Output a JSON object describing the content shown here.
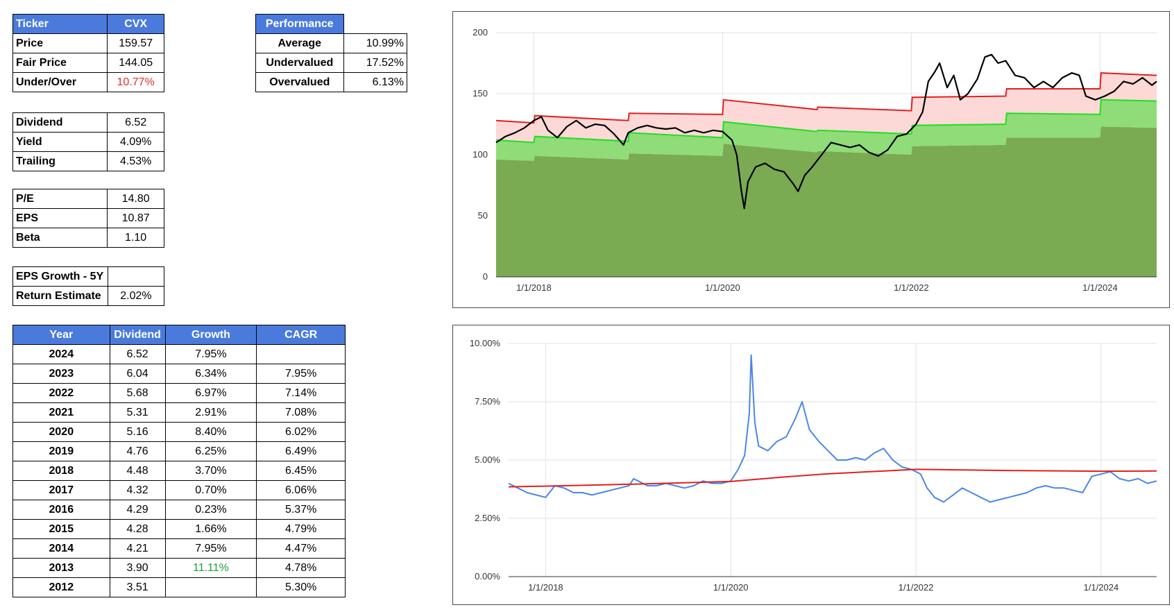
{
  "ticker_table": {
    "header_label": "Ticker",
    "header_value": "CVX",
    "rows": [
      {
        "label": "Price",
        "value": "159.57"
      },
      {
        "label": "Fair Price",
        "value": "144.05"
      },
      {
        "label": "Under/Over",
        "value": "10.77%",
        "color": "#e0302a"
      }
    ]
  },
  "performance_table": {
    "header": "Performance",
    "rows": [
      {
        "label": "Average",
        "value": "10.99%"
      },
      {
        "label": "Undervalued",
        "value": "17.52%"
      },
      {
        "label": "Overvalued",
        "value": "6.13%"
      }
    ]
  },
  "dividend_table": {
    "rows": [
      {
        "label": "Dividend",
        "value": "6.52"
      },
      {
        "label": "Yield",
        "value": "4.09%"
      },
      {
        "label": "Trailing",
        "value": "4.53%"
      }
    ]
  },
  "valuation_table": {
    "rows": [
      {
        "label": "P/E",
        "value": "14.80"
      },
      {
        "label": "EPS",
        "value": "10.87"
      },
      {
        "label": "Beta",
        "value": "1.10"
      }
    ]
  },
  "growth_table": {
    "rows": [
      {
        "label": "EPS Growth - 5Y",
        "value": ""
      },
      {
        "label": "Return Estimate",
        "value": "2.02%"
      }
    ]
  },
  "history_table": {
    "headers": [
      "Year",
      "Dividend",
      "Growth",
      "CAGR"
    ],
    "rows": [
      {
        "year": "2024",
        "dividend": "6.52",
        "growth": "7.95%",
        "cagr": ""
      },
      {
        "year": "2023",
        "dividend": "6.04",
        "growth": "6.34%",
        "cagr": "7.95%"
      },
      {
        "year": "2022",
        "dividend": "5.68",
        "growth": "6.97%",
        "cagr": "7.14%"
      },
      {
        "year": "2021",
        "dividend": "5.31",
        "growth": "2.91%",
        "cagr": "7.08%"
      },
      {
        "year": "2020",
        "dividend": "5.16",
        "growth": "8.40%",
        "cagr": "6.02%"
      },
      {
        "year": "2019",
        "dividend": "4.76",
        "growth": "6.25%",
        "cagr": "6.49%"
      },
      {
        "year": "2018",
        "dividend": "4.48",
        "growth": "3.70%",
        "cagr": "6.45%"
      },
      {
        "year": "2017",
        "dividend": "4.32",
        "growth": "0.70%",
        "cagr": "6.06%"
      },
      {
        "year": "2016",
        "dividend": "4.29",
        "growth": "0.23%",
        "cagr": "5.37%"
      },
      {
        "year": "2015",
        "dividend": "4.28",
        "growth": "1.66%",
        "cagr": "4.79%"
      },
      {
        "year": "2014",
        "dividend": "4.21",
        "growth": "7.95%",
        "cagr": "4.47%"
      },
      {
        "year": "2013",
        "dividend": "3.90",
        "growth": "11.11%",
        "cagr": "4.78%",
        "growth_color": "#1aa038"
      },
      {
        "year": "2012",
        "dividend": "3.51",
        "growth": "",
        "cagr": "5.30%"
      }
    ]
  },
  "colors": {
    "header_bg": "#4a7bdc",
    "price": "#000000",
    "overvalued_line": "#e02020",
    "overvalued_fill": "#fcd9d6",
    "fair_line": "#22dd22",
    "fair_fill": "#8fdc78",
    "under_fill": "#7aaa52",
    "yield_line": "#4a86e8",
    "avg_yield_line": "#e02020"
  },
  "chart_data": [
    {
      "type": "area",
      "name": "price-valuation",
      "x_ticks": [
        "1/1/2018",
        "1/1/2020",
        "1/1/2022",
        "1/1/2024"
      ],
      "x_tick_values": [
        2018.0,
        2020.0,
        2022.0,
        2024.0
      ],
      "xlim": [
        2017.6,
        2024.6
      ],
      "ylim": [
        0,
        200
      ],
      "y_ticks": [
        0,
        50,
        100,
        150,
        200
      ],
      "grid": true,
      "series": [
        {
          "role": "price",
          "points": [
            [
              2017.6,
              110
            ],
            [
              2017.7,
              115
            ],
            [
              2017.8,
              118
            ],
            [
              2017.9,
              122
            ],
            [
              2018.0,
              128
            ],
            [
              2018.08,
              131
            ],
            [
              2018.15,
              120
            ],
            [
              2018.25,
              114
            ],
            [
              2018.35,
              123
            ],
            [
              2018.45,
              128
            ],
            [
              2018.55,
              122
            ],
            [
              2018.65,
              125
            ],
            [
              2018.75,
              124
            ],
            [
              2018.85,
              117
            ],
            [
              2018.95,
              108
            ],
            [
              2019.0,
              118
            ],
            [
              2019.1,
              122
            ],
            [
              2019.2,
              124
            ],
            [
              2019.3,
              122
            ],
            [
              2019.4,
              121
            ],
            [
              2019.5,
              122
            ],
            [
              2019.6,
              118
            ],
            [
              2019.7,
              120
            ],
            [
              2019.8,
              118
            ],
            [
              2019.9,
              120
            ],
            [
              2020.0,
              119
            ],
            [
              2020.1,
              112
            ],
            [
              2020.15,
              100
            ],
            [
              2020.2,
              70
            ],
            [
              2020.23,
              56
            ],
            [
              2020.27,
              78
            ],
            [
              2020.35,
              90
            ],
            [
              2020.45,
              93
            ],
            [
              2020.55,
              88
            ],
            [
              2020.65,
              86
            ],
            [
              2020.75,
              76
            ],
            [
              2020.8,
              70
            ],
            [
              2020.87,
              83
            ],
            [
              2020.95,
              90
            ],
            [
              2021.05,
              100
            ],
            [
              2021.15,
              110
            ],
            [
              2021.25,
              108
            ],
            [
              2021.35,
              106
            ],
            [
              2021.45,
              108
            ],
            [
              2021.55,
              102
            ],
            [
              2021.65,
              99
            ],
            [
              2021.75,
              104
            ],
            [
              2021.85,
              115
            ],
            [
              2021.95,
              117
            ],
            [
              2022.05,
              125
            ],
            [
              2022.12,
              135
            ],
            [
              2022.18,
              160
            ],
            [
              2022.25,
              168
            ],
            [
              2022.3,
              175
            ],
            [
              2022.38,
              155
            ],
            [
              2022.45,
              165
            ],
            [
              2022.52,
              145
            ],
            [
              2022.6,
              150
            ],
            [
              2022.7,
              162
            ],
            [
              2022.78,
              180
            ],
            [
              2022.85,
              182
            ],
            [
              2022.92,
              175
            ],
            [
              2023.0,
              177
            ],
            [
              2023.1,
              165
            ],
            [
              2023.2,
              163
            ],
            [
              2023.3,
              155
            ],
            [
              2023.4,
              160
            ],
            [
              2023.5,
              155
            ],
            [
              2023.6,
              163
            ],
            [
              2023.7,
              167
            ],
            [
              2023.78,
              165
            ],
            [
              2023.85,
              148
            ],
            [
              2023.95,
              145
            ],
            [
              2024.05,
              148
            ],
            [
              2024.15,
              152
            ],
            [
              2024.25,
              160
            ],
            [
              2024.35,
              158
            ],
            [
              2024.45,
              163
            ],
            [
              2024.55,
              157
            ],
            [
              2024.6,
              160
            ]
          ]
        },
        {
          "role": "overvalued",
          "points": [
            [
              2017.6,
              128
            ],
            [
              2018.0,
              126
            ],
            [
              2018.01,
              132
            ],
            [
              2019.0,
              128
            ],
            [
              2019.01,
              134
            ],
            [
              2020.0,
              133
            ],
            [
              2020.01,
              145
            ],
            [
              2021.0,
              137
            ],
            [
              2021.01,
              139
            ],
            [
              2022.0,
              136
            ],
            [
              2022.01,
              147
            ],
            [
              2023.0,
              148
            ],
            [
              2023.01,
              154
            ],
            [
              2024.0,
              154
            ],
            [
              2024.01,
              167
            ],
            [
              2024.6,
              165
            ]
          ]
        },
        {
          "role": "fair",
          "points": [
            [
              2017.6,
              112
            ],
            [
              2018.0,
              110
            ],
            [
              2018.01,
              115
            ],
            [
              2019.0,
              111
            ],
            [
              2019.01,
              118
            ],
            [
              2020.0,
              114
            ],
            [
              2020.01,
              127
            ],
            [
              2021.0,
              119
            ],
            [
              2021.01,
              120
            ],
            [
              2022.0,
              117
            ],
            [
              2022.01,
              124
            ],
            [
              2023.0,
              125
            ],
            [
              2023.01,
              134
            ],
            [
              2024.0,
              133
            ],
            [
              2024.01,
              145
            ],
            [
              2024.6,
              144
            ]
          ]
        },
        {
          "role": "undervalued",
          "points": [
            [
              2017.6,
              96
            ],
            [
              2018.0,
              95
            ],
            [
              2018.01,
              99
            ],
            [
              2019.0,
              96
            ],
            [
              2019.01,
              101
            ],
            [
              2020.0,
              99
            ],
            [
              2020.01,
              109
            ],
            [
              2021.0,
              102
            ],
            [
              2021.01,
              103
            ],
            [
              2022.0,
              100
            ],
            [
              2022.01,
              107
            ],
            [
              2023.0,
              108
            ],
            [
              2023.01,
              114
            ],
            [
              2024.0,
              114
            ],
            [
              2024.01,
              123
            ],
            [
              2024.6,
              122
            ]
          ]
        }
      ]
    },
    {
      "type": "line",
      "name": "dividend-yield",
      "x_ticks": [
        "1/1/2018",
        "1/1/2020",
        "1/1/2022",
        "1/1/2024"
      ],
      "x_tick_values": [
        2018.0,
        2020.0,
        2022.0,
        2024.0
      ],
      "xlim": [
        2017.6,
        2024.6
      ],
      "ylim": [
        0,
        10
      ],
      "y_ticks": [
        0,
        2.5,
        5,
        7.5,
        10
      ],
      "y_tick_labels": [
        "0.00%",
        "2.50%",
        "5.00%",
        "7.50%",
        "10.00%"
      ],
      "grid": true,
      "series": [
        {
          "role": "yield",
          "points": [
            [
              2017.6,
              4.0
            ],
            [
              2017.7,
              3.8
            ],
            [
              2017.8,
              3.6
            ],
            [
              2017.9,
              3.5
            ],
            [
              2018.0,
              3.4
            ],
            [
              2018.1,
              3.9
            ],
            [
              2018.2,
              3.8
            ],
            [
              2018.3,
              3.6
            ],
            [
              2018.4,
              3.6
            ],
            [
              2018.5,
              3.5
            ],
            [
              2018.6,
              3.6
            ],
            [
              2018.7,
              3.7
            ],
            [
              2018.8,
              3.8
            ],
            [
              2018.9,
              3.9
            ],
            [
              2018.95,
              4.2
            ],
            [
              2019.0,
              4.1
            ],
            [
              2019.1,
              3.9
            ],
            [
              2019.2,
              3.9
            ],
            [
              2019.3,
              4.0
            ],
            [
              2019.4,
              3.9
            ],
            [
              2019.5,
              3.8
            ],
            [
              2019.6,
              3.9
            ],
            [
              2019.7,
              4.1
            ],
            [
              2019.8,
              4.0
            ],
            [
              2019.9,
              4.0
            ],
            [
              2020.0,
              4.1
            ],
            [
              2020.08,
              4.6
            ],
            [
              2020.15,
              5.2
            ],
            [
              2020.2,
              7.0
            ],
            [
              2020.22,
              9.5
            ],
            [
              2020.26,
              6.6
            ],
            [
              2020.3,
              5.6
            ],
            [
              2020.4,
              5.4
            ],
            [
              2020.5,
              5.8
            ],
            [
              2020.6,
              6.0
            ],
            [
              2020.7,
              6.8
            ],
            [
              2020.77,
              7.5
            ],
            [
              2020.85,
              6.3
            ],
            [
              2020.95,
              5.8
            ],
            [
              2021.05,
              5.4
            ],
            [
              2021.15,
              5.0
            ],
            [
              2021.25,
              5.0
            ],
            [
              2021.35,
              5.1
            ],
            [
              2021.45,
              5.0
            ],
            [
              2021.55,
              5.3
            ],
            [
              2021.65,
              5.5
            ],
            [
              2021.75,
              5.0
            ],
            [
              2021.85,
              4.7
            ],
            [
              2021.95,
              4.6
            ],
            [
              2022.05,
              4.4
            ],
            [
              2022.12,
              3.8
            ],
            [
              2022.2,
              3.4
            ],
            [
              2022.3,
              3.2
            ],
            [
              2022.4,
              3.5
            ],
            [
              2022.5,
              3.8
            ],
            [
              2022.6,
              3.6
            ],
            [
              2022.7,
              3.4
            ],
            [
              2022.8,
              3.2
            ],
            [
              2022.9,
              3.3
            ],
            [
              2023.0,
              3.4
            ],
            [
              2023.1,
              3.5
            ],
            [
              2023.2,
              3.6
            ],
            [
              2023.3,
              3.8
            ],
            [
              2023.4,
              3.9
            ],
            [
              2023.5,
              3.8
            ],
            [
              2023.6,
              3.8
            ],
            [
              2023.7,
              3.7
            ],
            [
              2023.8,
              3.6
            ],
            [
              2023.9,
              4.3
            ],
            [
              2024.0,
              4.4
            ],
            [
              2024.1,
              4.5
            ],
            [
              2024.2,
              4.2
            ],
            [
              2024.3,
              4.1
            ],
            [
              2024.4,
              4.2
            ],
            [
              2024.5,
              4.0
            ],
            [
              2024.6,
              4.1
            ]
          ]
        },
        {
          "role": "average",
          "points": [
            [
              2017.6,
              3.85
            ],
            [
              2018.0,
              3.88
            ],
            [
              2019.0,
              3.97
            ],
            [
              2020.0,
              4.08
            ],
            [
              2020.5,
              4.25
            ],
            [
              2021.0,
              4.4
            ],
            [
              2021.5,
              4.5
            ],
            [
              2022.0,
              4.6
            ],
            [
              2023.0,
              4.55
            ],
            [
              2024.0,
              4.52
            ],
            [
              2024.6,
              4.53
            ]
          ]
        }
      ]
    }
  ]
}
